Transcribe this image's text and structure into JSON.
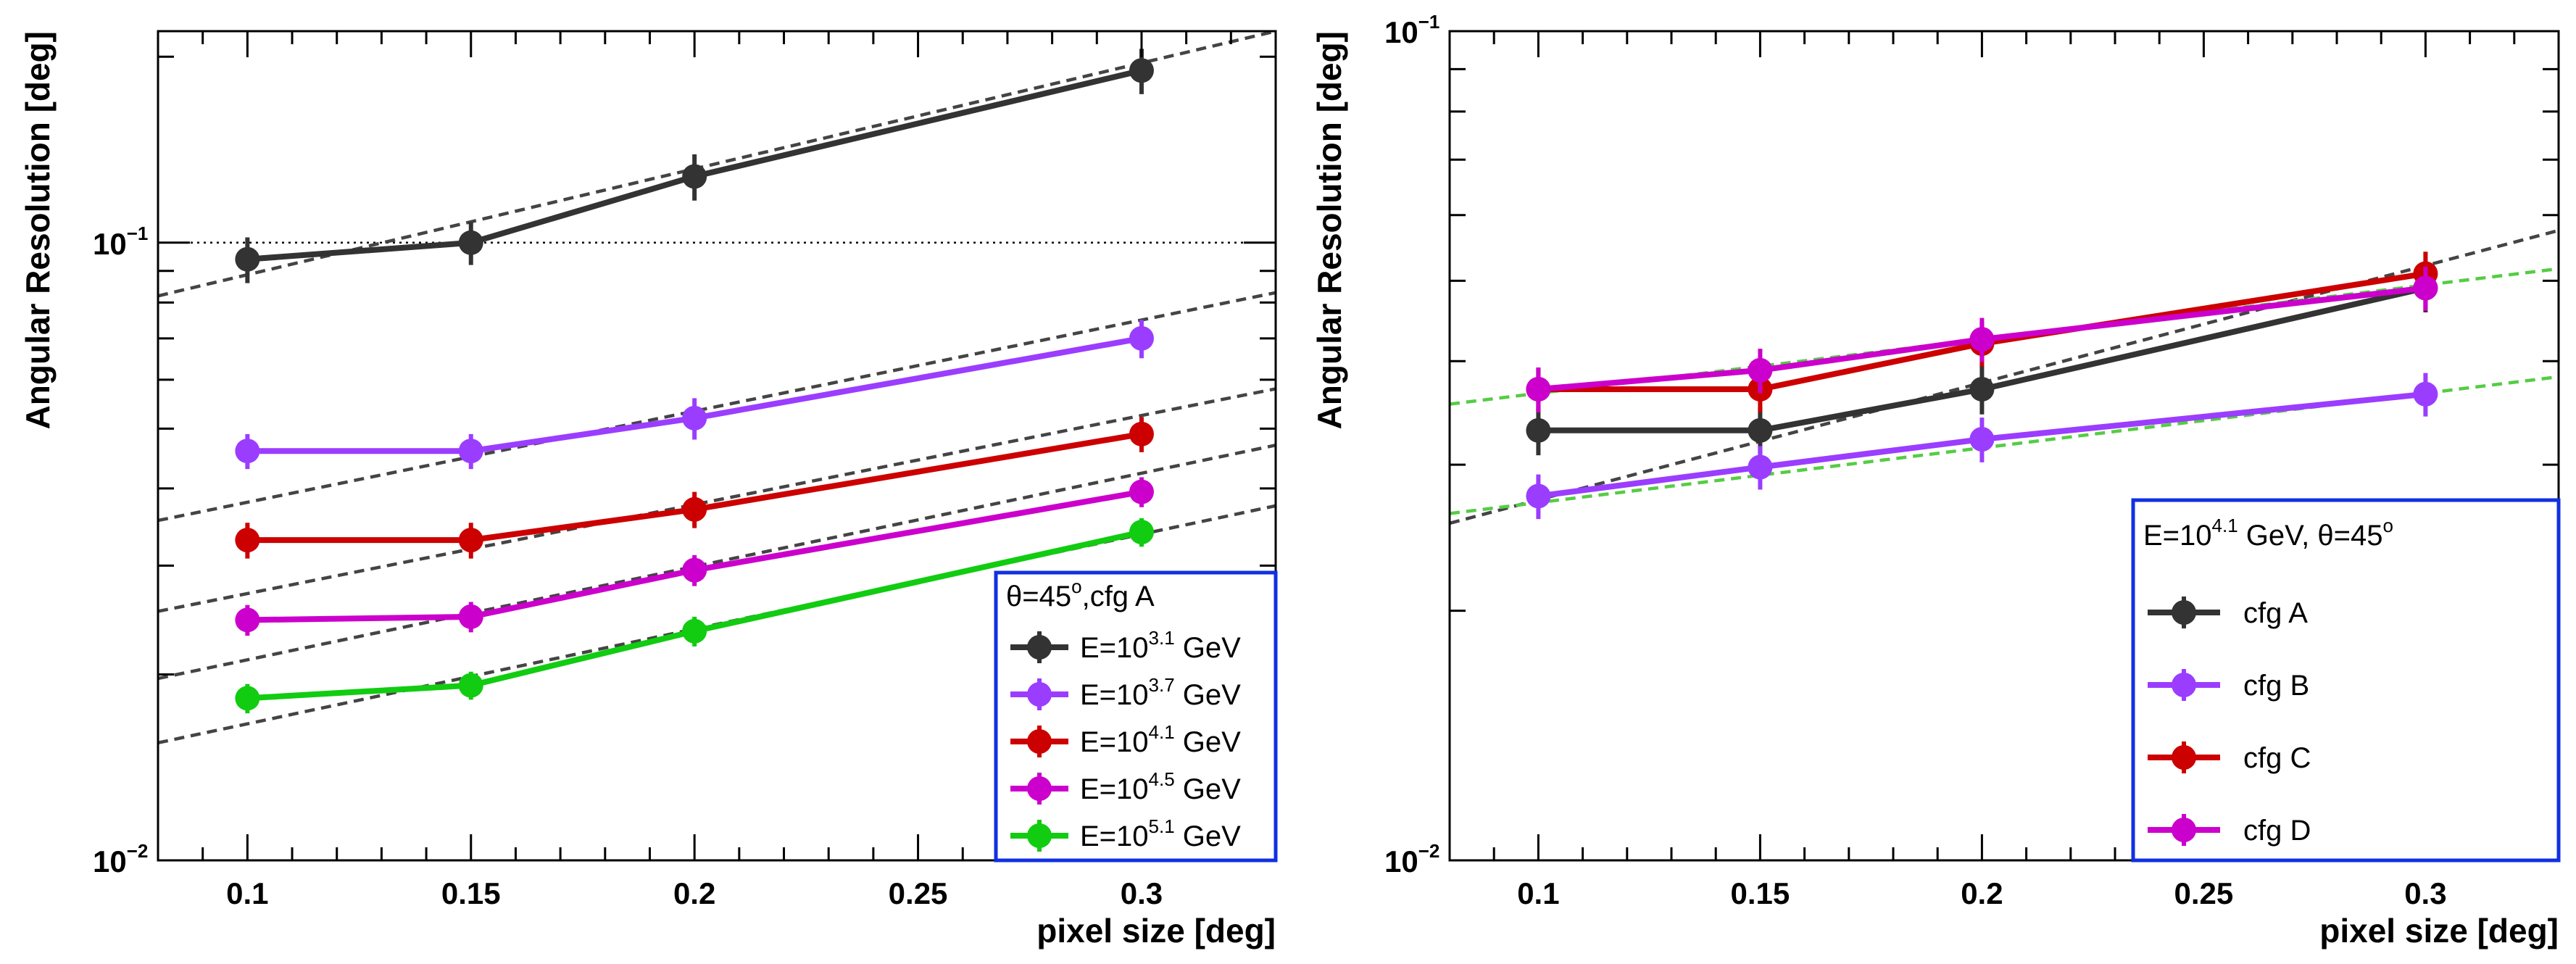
{
  "chart_data": [
    {
      "type": "line",
      "yscale": "log",
      "xlabel": "pixel size [deg]",
      "ylabel": "Angular Resolution [deg]",
      "xlim": [
        0.08,
        0.33
      ],
      "ylim": [
        0.01,
        0.22
      ],
      "x_ticks": [
        0.1,
        0.15,
        0.2,
        0.25,
        0.3
      ],
      "x_tick_labels": [
        "0.1",
        "0.15",
        "0.2",
        "0.25",
        "0.3"
      ],
      "y_tick_labels": [
        {
          "value": 0.1,
          "base": "10",
          "exp": "−1"
        },
        {
          "value": 0.01,
          "base": "10",
          "exp": "−2"
        }
      ],
      "reference_line": {
        "y": 0.1,
        "style": "dotted"
      },
      "legend": {
        "title": "θ=45",
        "title_sup": "o",
        "title_suffix": ",cfg A",
        "position": "bottom-right"
      },
      "series": [
        {
          "name": "E=10^3.1 GeV",
          "label_base": "E=10",
          "label_exp": "3.1",
          "label_unit": " GeV",
          "color": "#333333",
          "x": [
            0.1,
            0.15,
            0.2,
            0.3
          ],
          "y": [
            0.094,
            0.1,
            0.128,
            0.19
          ],
          "yerr": [
            0.008,
            0.008,
            0.011,
            0.016
          ],
          "fit": {
            "color": "#444444",
            "x": [
              0.08,
              0.33
            ],
            "y": [
              0.082,
              0.22
            ]
          }
        },
        {
          "name": "E=10^3.7 GeV",
          "label_base": "E=10",
          "label_exp": "3.7",
          "label_unit": " GeV",
          "color": "#9b3dff",
          "x": [
            0.1,
            0.15,
            0.2,
            0.3
          ],
          "y": [
            0.046,
            0.046,
            0.052,
            0.07
          ],
          "yerr": [
            0.003,
            0.003,
            0.004,
            0.005
          ],
          "fit": {
            "color": "#444444",
            "x": [
              0.08,
              0.33
            ],
            "y": [
              0.0355,
              0.083
            ]
          }
        },
        {
          "name": "E=10^4.1 GeV",
          "label_base": "E=10",
          "label_exp": "4.1",
          "label_unit": " GeV",
          "color": "#cc0000",
          "x": [
            0.1,
            0.15,
            0.2,
            0.3
          ],
          "y": [
            0.033,
            0.033,
            0.037,
            0.049
          ],
          "yerr": [
            0.0022,
            0.0022,
            0.0025,
            0.0032
          ],
          "fit": {
            "color": "#444444",
            "x": [
              0.08,
              0.33
            ],
            "y": [
              0.0253,
              0.058
            ]
          }
        },
        {
          "name": "E=10^4.5 GeV",
          "label_base": "E=10",
          "label_exp": "4.5",
          "label_unit": " GeV",
          "color": "#cc00cc",
          "x": [
            0.1,
            0.15,
            0.2,
            0.3
          ],
          "y": [
            0.0245,
            0.0248,
            0.0295,
            0.0395
          ],
          "yerr": [
            0.0014,
            0.0014,
            0.0017,
            0.0022
          ],
          "fit": {
            "color": "#444444",
            "x": [
              0.08,
              0.33
            ],
            "y": [
              0.0197,
              0.047
            ]
          }
        },
        {
          "name": "E=10^5.1 GeV",
          "label_base": "E=10",
          "label_exp": "5.1",
          "label_unit": " GeV",
          "color": "#11cc11",
          "x": [
            0.1,
            0.15,
            0.2,
            0.3
          ],
          "y": [
            0.0183,
            0.0192,
            0.0235,
            0.034
          ],
          "yerr": [
            0.001,
            0.001,
            0.0013,
            0.0018
          ],
          "fit": {
            "color": "#444444",
            "x": [
              0.08,
              0.33
            ],
            "y": [
              0.0155,
              0.0375
            ]
          }
        }
      ]
    },
    {
      "type": "line",
      "yscale": "log",
      "xlabel": "pixel size [deg]",
      "ylabel": "Angular Resolution [deg]",
      "xlim": [
        0.08,
        0.33
      ],
      "ylim": [
        0.01,
        0.1
      ],
      "x_ticks": [
        0.1,
        0.15,
        0.2,
        0.25,
        0.3
      ],
      "x_tick_labels": [
        "0.1",
        "0.15",
        "0.2",
        "0.25",
        "0.3"
      ],
      "y_tick_labels": [
        {
          "value": 0.1,
          "base": "10",
          "exp": "−1"
        },
        {
          "value": 0.01,
          "base": "10",
          "exp": "−2"
        }
      ],
      "legend": {
        "title_base": "E=10",
        "title_exp": "4.1",
        "title_mid": " GeV, θ=45",
        "title_sup": "o",
        "position": "bottom-right"
      },
      "series": [
        {
          "name": "cfg A",
          "color": "#333333",
          "x": [
            0.1,
            0.15,
            0.2,
            0.3
          ],
          "y": [
            0.033,
            0.033,
            0.037,
            0.049
          ],
          "yerr": [
            0.0022,
            0.0022,
            0.0025,
            0.0032
          ],
          "fit": {
            "color": "#444444",
            "x": [
              0.08,
              0.33
            ],
            "y": [
              0.0255,
              0.0575
            ]
          }
        },
        {
          "name": "cfg B",
          "color": "#9b3dff",
          "x": [
            0.1,
            0.15,
            0.2,
            0.3
          ],
          "y": [
            0.0275,
            0.0298,
            0.0322,
            0.0365
          ],
          "yerr": [
            0.0017,
            0.0018,
            0.002,
            0.0022
          ],
          "fit": {
            "color": "#55cc44",
            "x": [
              0.08,
              0.33
            ],
            "y": [
              0.0262,
              0.0383
            ]
          }
        },
        {
          "name": "cfg C",
          "color": "#cc0000",
          "x": [
            0.1,
            0.15,
            0.2,
            0.3
          ],
          "y": [
            0.037,
            0.037,
            0.042,
            0.051
          ],
          "yerr": [
            0.0023,
            0.0023,
            0.0026,
            0.0032
          ],
          "fit": null
        },
        {
          "name": "cfg D",
          "color": "#cc00cc",
          "x": [
            0.1,
            0.15,
            0.2,
            0.3
          ],
          "y": [
            0.037,
            0.039,
            0.0425,
            0.049
          ],
          "yerr": [
            0.0023,
            0.0024,
            0.0026,
            0.003
          ],
          "fit": {
            "color": "#55cc44",
            "x": [
              0.08,
              0.33
            ],
            "y": [
              0.0355,
              0.0517
            ]
          }
        }
      ]
    }
  ]
}
